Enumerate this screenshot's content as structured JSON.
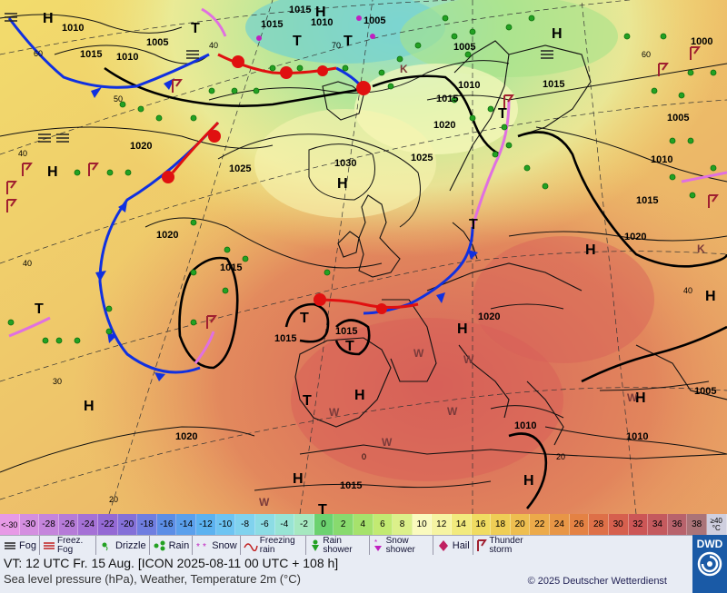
{
  "map": {
    "isobars": [
      "1015",
      "1010",
      "1005",
      "1010",
      "1000",
      "1005",
      "1020",
      "1015",
      "1010",
      "1015",
      "1020",
      "1010",
      "1005",
      "1025",
      "1030",
      "1025",
      "1020",
      "1015",
      "1020",
      "1010",
      "1015",
      "1015",
      "1015",
      "1020",
      "1010",
      "1005",
      "1020",
      "1015",
      "1015",
      "1010",
      "1015",
      "1005"
    ],
    "pressure_centers": [
      "H",
      "H",
      "T",
      "T",
      "H",
      "H",
      "H",
      "H",
      "T",
      "T",
      "T",
      "H",
      "T",
      "H",
      "T",
      "H",
      "T",
      "H",
      "H",
      "H",
      "H",
      "T",
      "H"
    ],
    "lat_labels": [
      "60",
      "50",
      "40",
      "40",
      "40",
      "30",
      "20",
      "70",
      "60",
      "40",
      "30",
      "0",
      "20"
    ],
    "weather_letters": [
      "W",
      "W",
      "W",
      "W",
      "W",
      "W",
      "W",
      "K",
      "K",
      "W",
      "W"
    ]
  },
  "temperature_scale": {
    "values": [
      "<-30",
      "-30",
      "-28",
      "-26",
      "-24",
      "-22",
      "-20",
      "-18",
      "-16",
      "-14",
      "-12",
      "-10",
      "-8",
      "-6",
      "-4",
      "-2",
      "0",
      "2",
      "4",
      "6",
      "8",
      "10",
      "12",
      "14",
      "16",
      "18",
      "20",
      "22",
      "24",
      "26",
      "28",
      "30",
      "32",
      "34",
      "36",
      "38",
      "≥40 °C"
    ],
    "colors": [
      "#e79ae6",
      "#d48fe0",
      "#c585dc",
      "#b67bd8",
      "#a571d6",
      "#9469d4",
      "#8470d8",
      "#6f7ee0",
      "#5c8ee6",
      "#5ba0ec",
      "#5cb2f0",
      "#6ec4f2",
      "#80d2ee",
      "#8cdce4",
      "#98e4d4",
      "#a6e8c0",
      "#6cd270",
      "#88da6e",
      "#a6e26c",
      "#c2ea72",
      "#dcf08a",
      "#fafabe",
      "#f6f4a2",
      "#f2ea7e",
      "#f0dc62",
      "#efce56",
      "#eebe50",
      "#ecaa4a",
      "#e89646",
      "#e48244",
      "#de7048",
      "#d6604e",
      "#cc5656",
      "#c45a5e",
      "#b8636c",
      "#aa7478",
      "#cfcfdf"
    ]
  },
  "legend": {
    "fog": "Fog",
    "freezing_fog": "Freez. Fog",
    "drizzle": "Drizzle",
    "rain": "Rain",
    "snow": "Snow",
    "freezing_rain": "Freezing rain",
    "rain_shower": "Rain shower",
    "snow_shower": "Snow shower",
    "hail": "Hail",
    "thunderstorm": "Thunder storm"
  },
  "footer": {
    "valid_time": "VT: 12 UTC Fr.  15 Aug. [ICON 2025-08-11  00 UTC + 108 h]",
    "subtitle": "Sea level pressure (hPa), Weather, Temperature 2m (°C)",
    "copyright": "© 2025 Deutscher Wetterdienst",
    "logo": "DWD"
  }
}
